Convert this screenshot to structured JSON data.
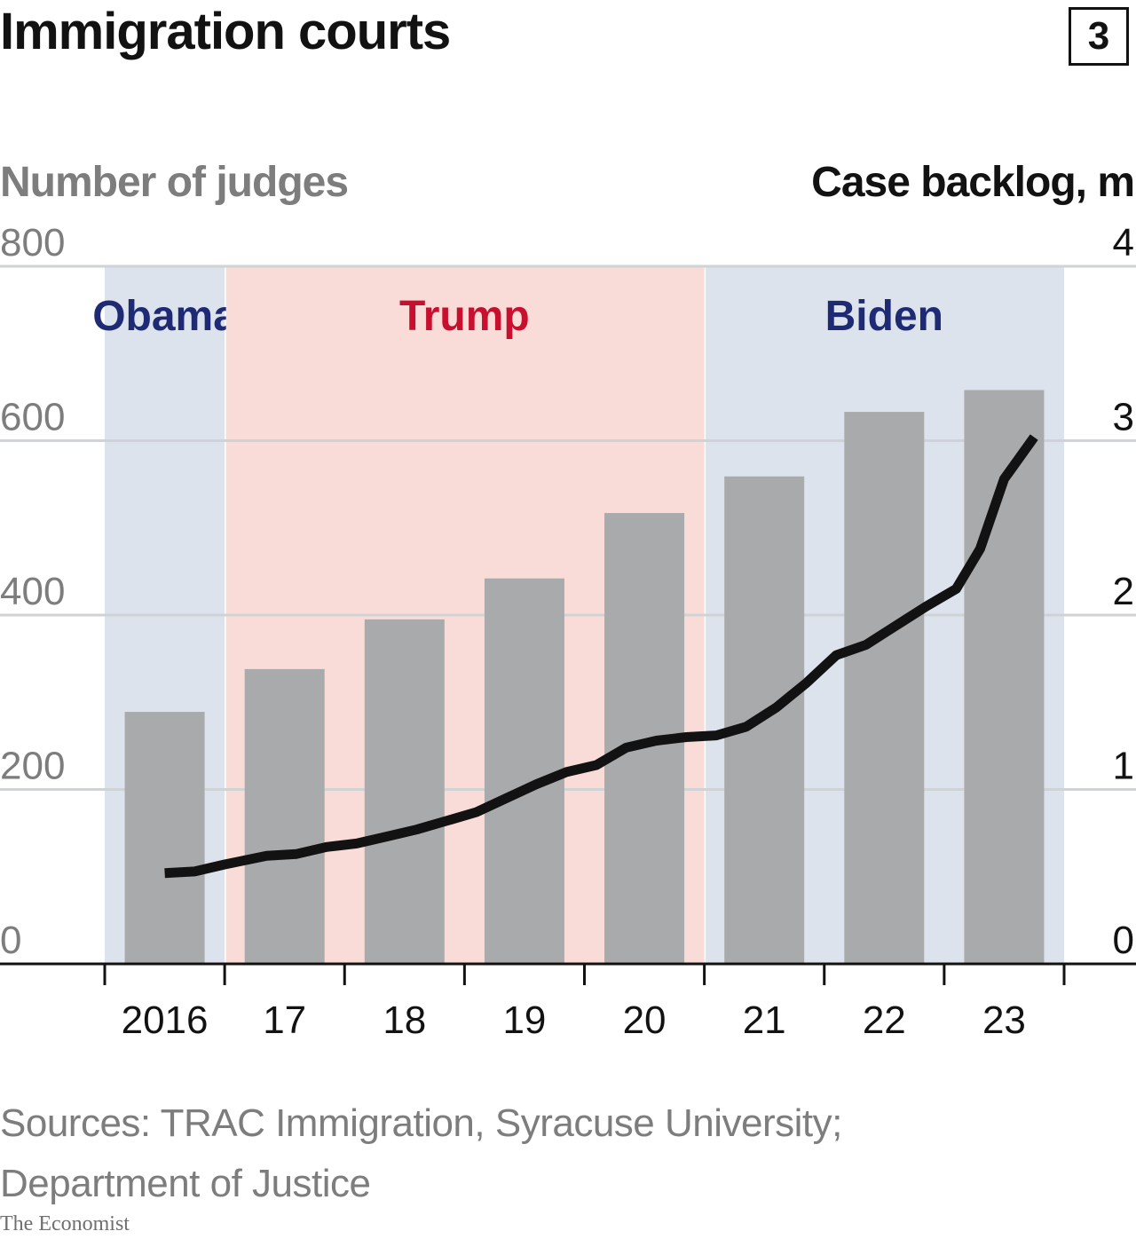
{
  "header": {
    "title": "Immigration courts",
    "badge": "3"
  },
  "axes": {
    "left_title": "Number of judges",
    "right_title": "Case backlog, m"
  },
  "eras": [
    {
      "label": "Obama",
      "start": 2015.5,
      "end": 2016.5,
      "fill": "#dde3ec",
      "label_color": "#1f2a75"
    },
    {
      "label": "Trump",
      "start": 2016.5,
      "end": 2020.5,
      "fill": "#f9dbd7",
      "label_color": "#c8102e"
    },
    {
      "label": "Biden",
      "start": 2020.5,
      "end": 2023.5,
      "fill": "#dde3ec",
      "label_color": "#1f2a75"
    }
  ],
  "chart_data": {
    "type": "bar",
    "categories": [
      "2016",
      "17",
      "18",
      "19",
      "20",
      "21",
      "22",
      "23"
    ],
    "series": [
      {
        "name": "Number of judges",
        "type": "bar",
        "axis": "left",
        "x": [
          2016,
          2017,
          2018,
          2019,
          2020,
          2021,
          2022,
          2023
        ],
        "values": [
          289,
          338,
          395,
          442,
          517,
          559,
          633,
          658
        ],
        "color": "#a9aaab"
      },
      {
        "name": "Case backlog, m",
        "type": "line",
        "axis": "right",
        "color": "#121212",
        "points": [
          [
            2016.0,
            0.52
          ],
          [
            2016.25,
            0.53
          ],
          [
            2016.5,
            0.57
          ],
          [
            2016.85,
            0.62
          ],
          [
            2017.1,
            0.63
          ],
          [
            2017.35,
            0.67
          ],
          [
            2017.6,
            0.69
          ],
          [
            2017.85,
            0.73
          ],
          [
            2018.1,
            0.77
          ],
          [
            2018.35,
            0.82
          ],
          [
            2018.6,
            0.87
          ],
          [
            2018.85,
            0.95
          ],
          [
            2019.1,
            1.03
          ],
          [
            2019.35,
            1.1
          ],
          [
            2019.6,
            1.14
          ],
          [
            2019.85,
            1.24
          ],
          [
            2020.1,
            1.28
          ],
          [
            2020.35,
            1.3
          ],
          [
            2020.6,
            1.31
          ],
          [
            2020.85,
            1.36
          ],
          [
            2021.1,
            1.47
          ],
          [
            2021.35,
            1.61
          ],
          [
            2021.6,
            1.77
          ],
          [
            2021.85,
            1.83
          ],
          [
            2022.1,
            1.94
          ],
          [
            2022.35,
            2.05
          ],
          [
            2022.6,
            2.15
          ],
          [
            2022.8,
            2.38
          ],
          [
            2023.0,
            2.78
          ],
          [
            2023.25,
            3.02
          ]
        ]
      }
    ],
    "x_tick_positions": [
      2015.5,
      2016.5,
      2017.5,
      2018.5,
      2019.5,
      2020.5,
      2021.5,
      2022.5,
      2023.5
    ],
    "ylim_left": [
      0,
      800
    ],
    "yticks_left": [
      0,
      200,
      400,
      600,
      800
    ],
    "ylim_right": [
      0,
      4
    ],
    "yticks_right": [
      0,
      1,
      2,
      3,
      4
    ],
    "grid": true
  },
  "footer": {
    "source_line1": "Sources: TRAC Immigration, Syracuse University;",
    "source_line2": "Department of Justice",
    "logo": "The Economist"
  }
}
